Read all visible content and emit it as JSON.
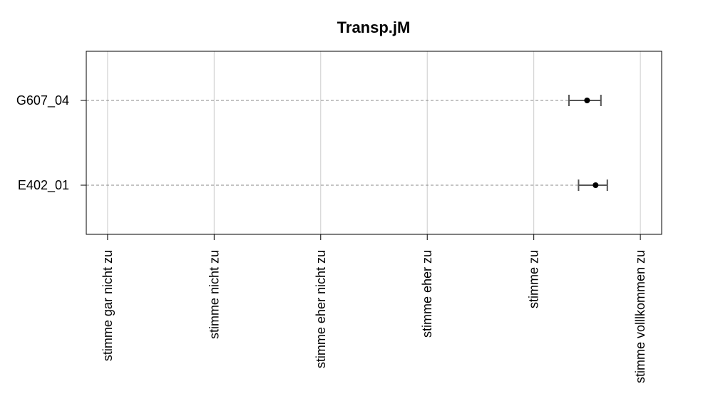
{
  "chart_data": {
    "type": "scatter",
    "title": "Transp.jM",
    "xlabel": "",
    "ylabel": "",
    "x_categories": [
      "stimme gar nicht zu",
      "stimme nicht zu",
      "stimme eher nicht zu",
      "stimme eher zu",
      "stimme zu",
      "stimme volllkommen zu"
    ],
    "x_values": [
      1,
      2,
      3,
      4,
      5,
      6
    ],
    "xlim": [
      0.8,
      6.2
    ],
    "y_categories": [
      "G607_04",
      "E402_01"
    ],
    "points": [
      {
        "label": "G607_04",
        "mean": 5.5,
        "ci_low": 5.33,
        "ci_high": 5.63
      },
      {
        "label": "E402_01",
        "mean": 5.58,
        "ci_low": 5.42,
        "ci_high": 5.69
      }
    ],
    "grid": true,
    "colors": {
      "point": "#000000",
      "errorbar": "#555555",
      "guide": "#888888",
      "grid": "#cccccc"
    }
  }
}
